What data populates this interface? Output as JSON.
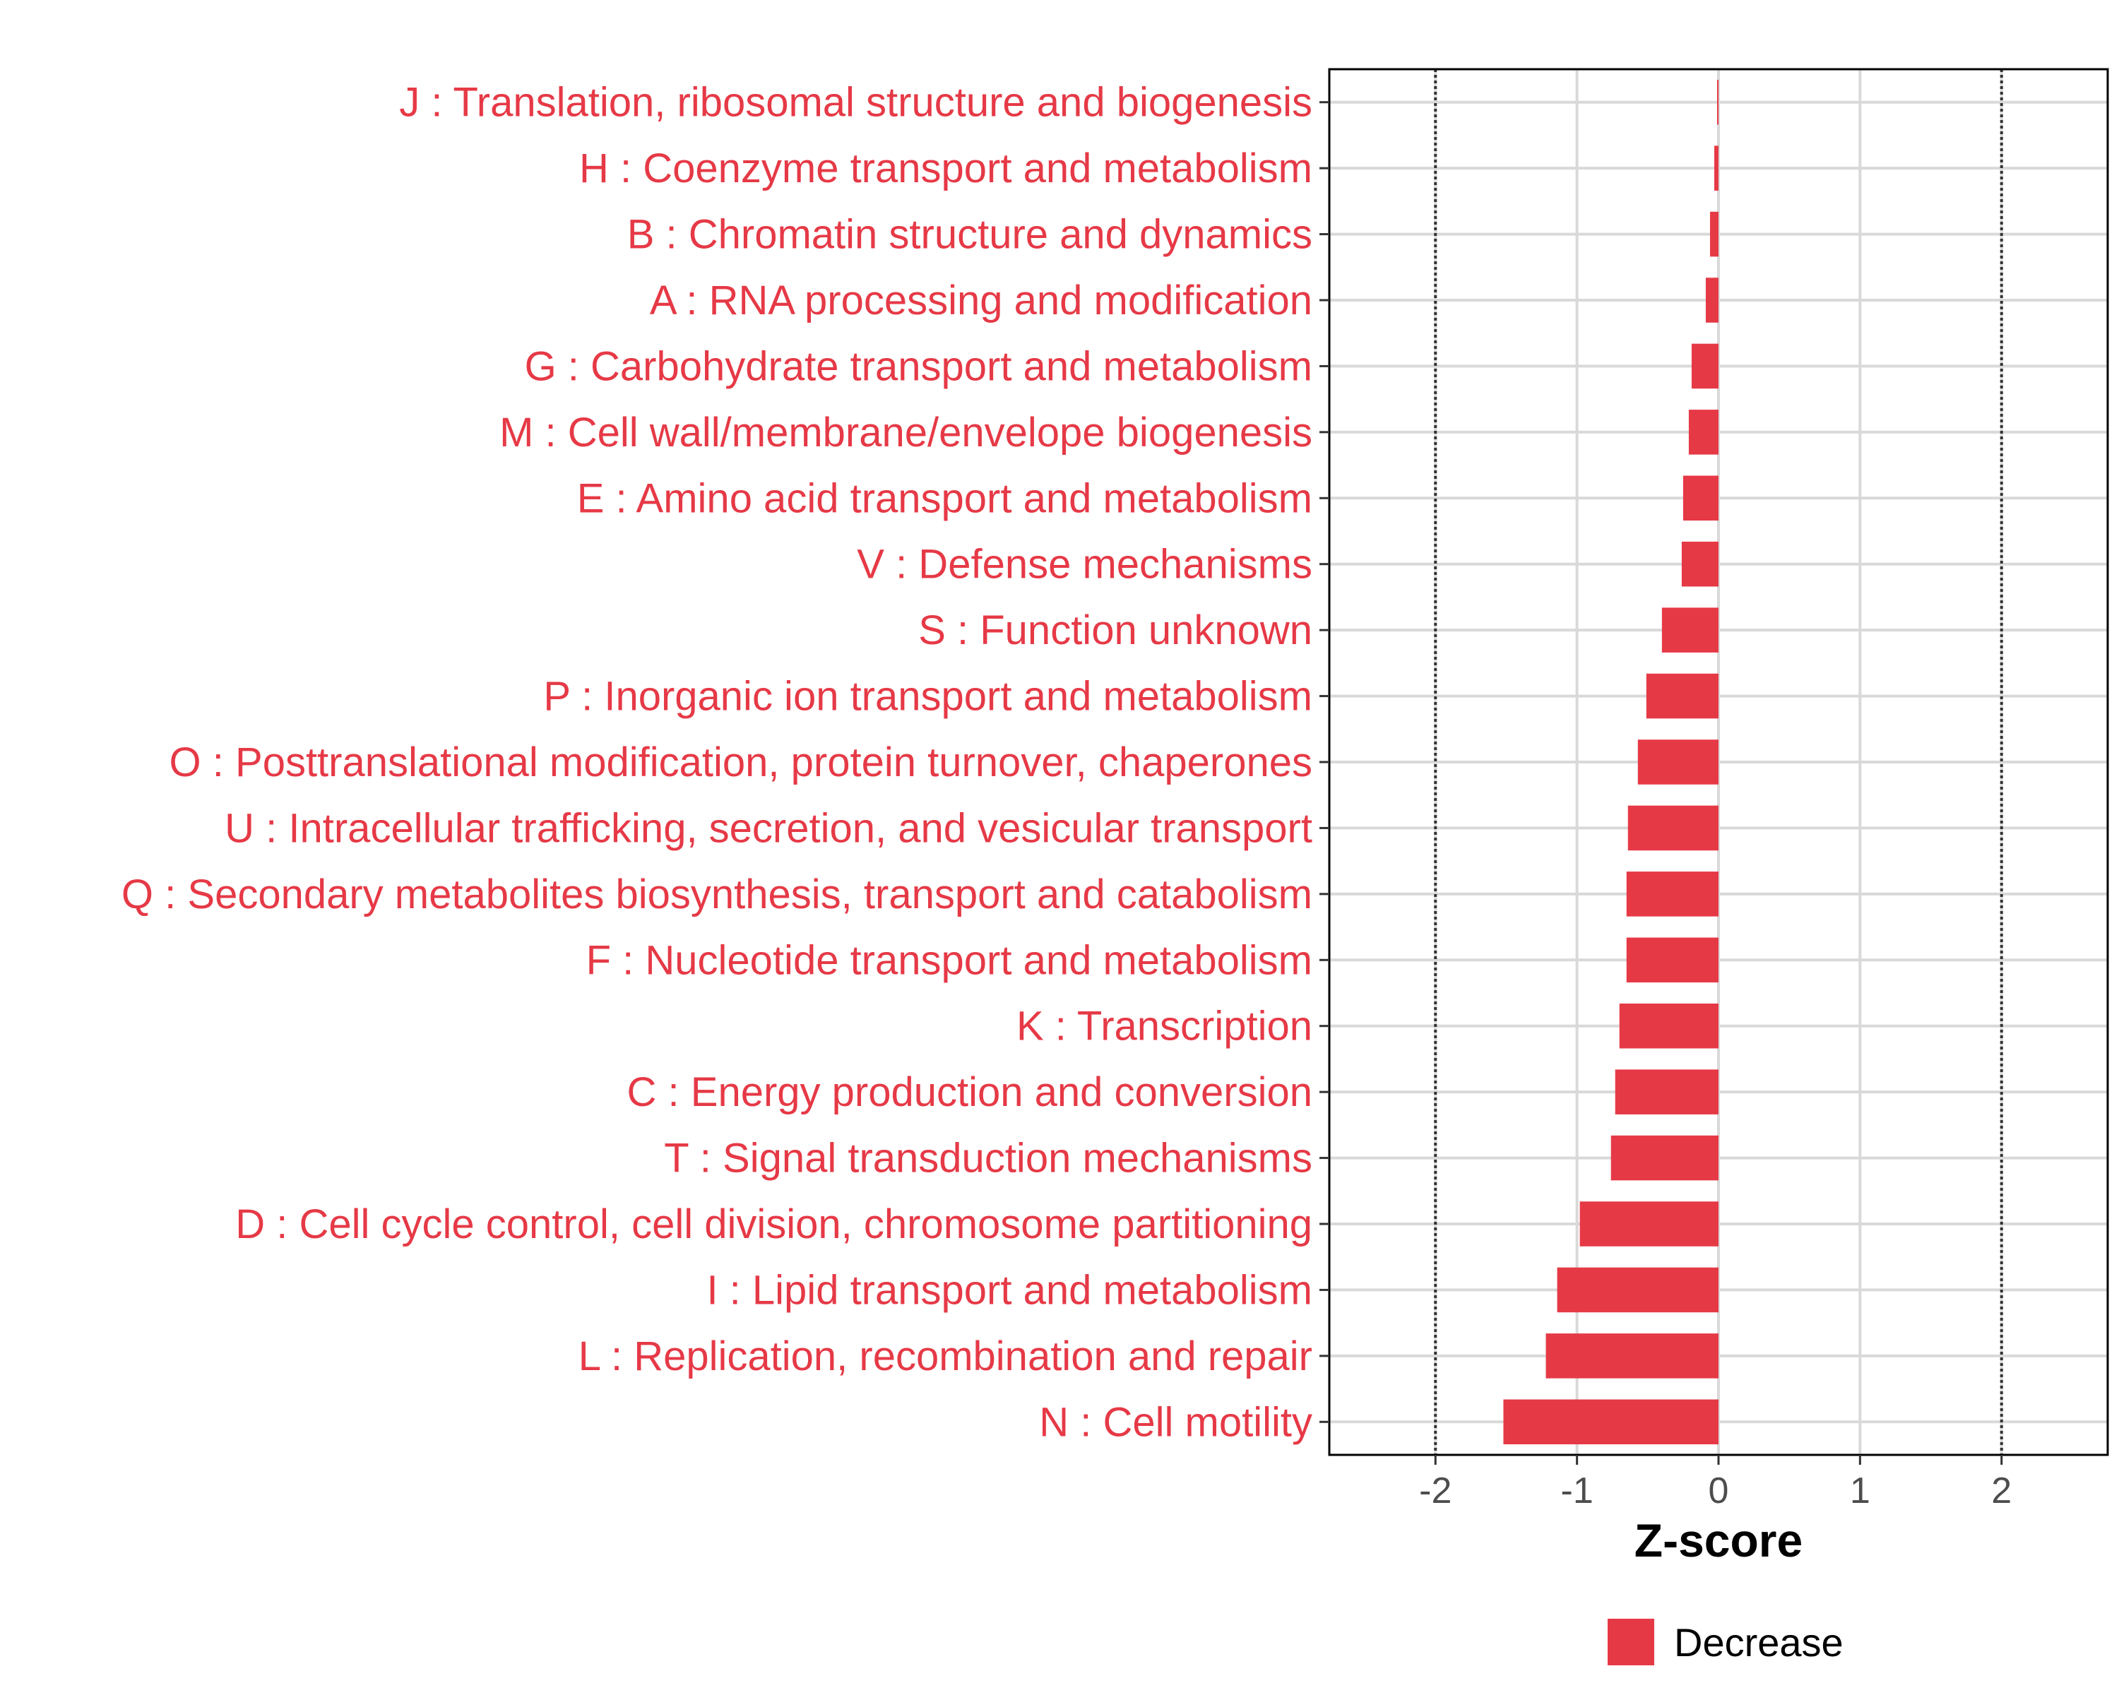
{
  "chart_data": {
    "type": "bar",
    "orientation": "horizontal",
    "categories": [
      "J : Translation, ribosomal structure and biogenesis",
      "H : Coenzyme transport and metabolism",
      "B : Chromatin structure and dynamics",
      "A : RNA processing and modification",
      "G : Carbohydrate transport and metabolism",
      "M : Cell wall/membrane/envelope biogenesis",
      "E : Amino acid transport and metabolism",
      "V : Defense mechanisms",
      "S : Function unknown",
      "P : Inorganic ion transport and metabolism",
      "O : Posttranslational modification, protein turnover, chaperones",
      "U : Intracellular trafficking, secretion, and vesicular transport",
      "Q : Secondary metabolites biosynthesis, transport and catabolism",
      "F : Nucleotide transport and metabolism",
      "K : Transcription",
      "C : Energy production and conversion",
      "T : Signal transduction mechanisms",
      "D : Cell cycle control, cell division, chromosome partitioning",
      "I : Lipid transport and metabolism",
      "L : Replication, recombination and repair",
      "N : Cell motility"
    ],
    "values": [
      -0.01,
      -0.03,
      -0.06,
      -0.09,
      -0.19,
      -0.21,
      -0.25,
      -0.26,
      -0.4,
      -0.51,
      -0.57,
      -0.64,
      -0.65,
      -0.65,
      -0.7,
      -0.73,
      -0.76,
      -0.98,
      -1.14,
      -1.22,
      -1.52
    ],
    "series": [
      {
        "name": "Decrease",
        "color": "#e63946"
      }
    ],
    "xlabel": "Z-score",
    "ylabel": "",
    "xlim": [
      -2.75,
      2.75
    ],
    "xticks": [
      -2,
      -1,
      0,
      1,
      2
    ],
    "xtick_labels": [
      "-2",
      "-1",
      "0",
      "1",
      "2"
    ],
    "reference_lines": [
      -2,
      2
    ],
    "grid": true,
    "legend_position": "bottom",
    "colors": {
      "bar": "#e63946",
      "category_label": "#e63946",
      "grid": "#d9d9d9",
      "reference_line": "#333333"
    }
  }
}
